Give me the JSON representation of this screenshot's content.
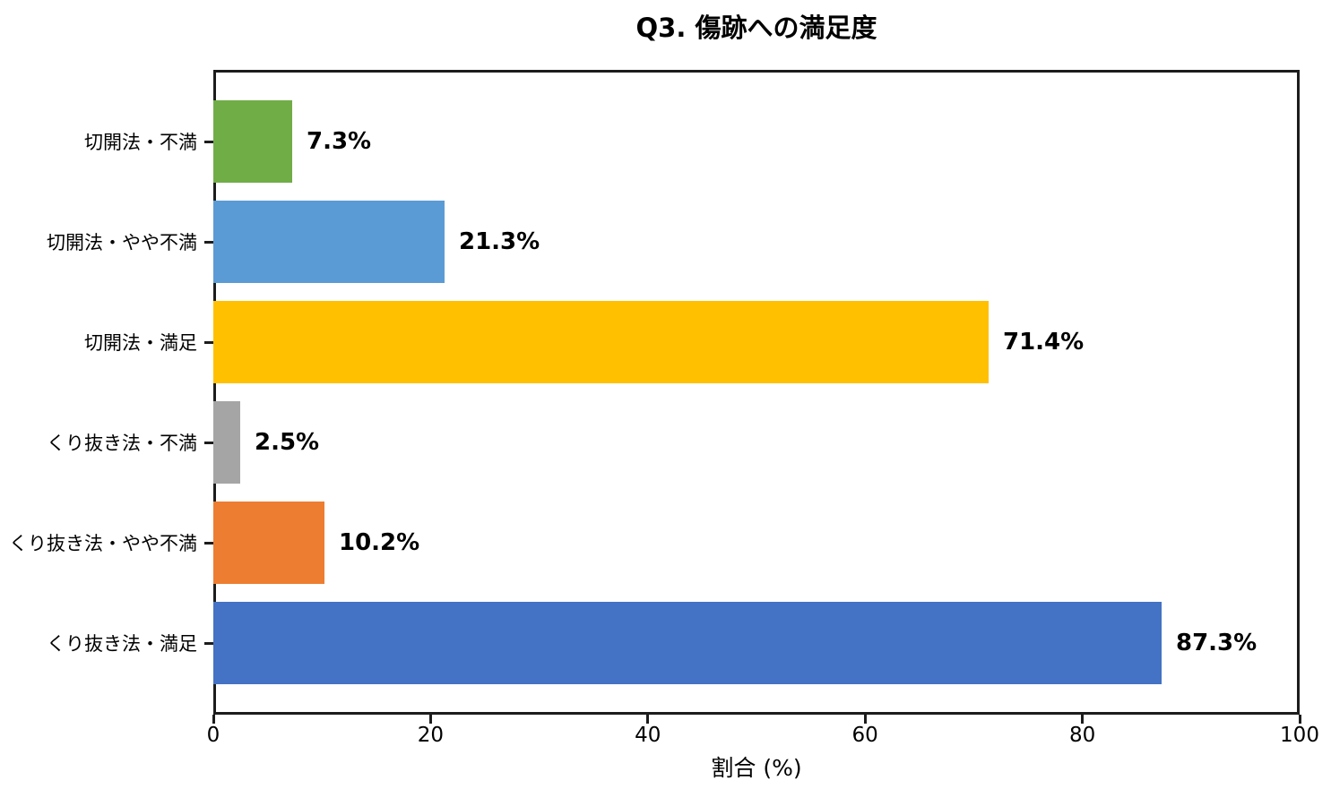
{
  "chart_data": {
    "type": "bar",
    "orientation": "horizontal",
    "title": "Q3. 傷跡への満足度",
    "xlabel": "割合 (%)",
    "xlim": [
      0,
      100
    ],
    "xticks": [
      0,
      20,
      40,
      60,
      80,
      100
    ],
    "grid": false,
    "legend": null,
    "categories": [
      "切開法・不満",
      "切開法・やや不満",
      "切開法・満足",
      "くり抜き法・不満",
      "くり抜き法・やや不満",
      "くり抜き法・満足"
    ],
    "values": [
      7.3,
      21.3,
      71.4,
      2.5,
      10.2,
      87.3
    ],
    "value_labels": [
      "7.3%",
      "21.3%",
      "71.4%",
      "2.5%",
      "10.2%",
      "87.3%"
    ],
    "bar_colors": [
      "#70ad47",
      "#5b9bd5",
      "#ffc000",
      "#a5a5a5",
      "#ed7d31",
      "#4472c4"
    ],
    "axis_color": "#1c1c1c"
  }
}
